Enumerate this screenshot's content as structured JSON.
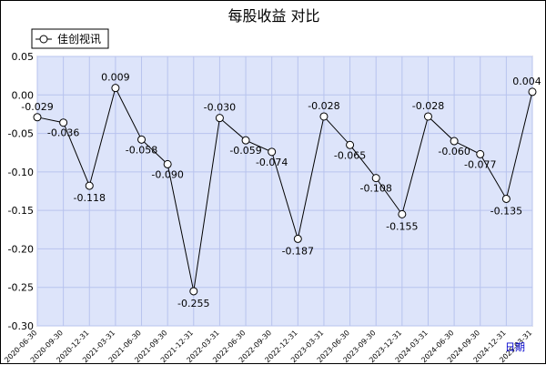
{
  "chart_data": {
    "type": "line",
    "title": "每股收益  对比",
    "x_axis_name": "日期",
    "ylim": [
      -0.3,
      0.05
    ],
    "yticks": [
      0.05,
      0.0,
      -0.05,
      -0.1,
      -0.15,
      -0.2,
      -0.25,
      -0.3
    ],
    "grid": true,
    "legend": "top-left",
    "colors": {
      "plot_bg": "#dde4fa",
      "grid": "#b8c3ee",
      "line": "#000000",
      "marker_fill": "#ffffff"
    },
    "categories": [
      "2020-06-30",
      "2020-09-30",
      "2020-12-31",
      "2021-03-31",
      "2021-06-30",
      "2021-09-30",
      "2021-12-31",
      "2022-03-31",
      "2022-06-30",
      "2022-09-30",
      "2022-12-31",
      "2023-03-31",
      "2023-06-30",
      "2023-09-30",
      "2023-12-31",
      "2024-03-31",
      "2024-06-30",
      "2024-09-30",
      "2024-12-31",
      "2025-03-31"
    ],
    "series": [
      {
        "name": "佳创视讯",
        "values": [
          -0.029,
          -0.036,
          -0.118,
          0.009,
          -0.058,
          -0.09,
          -0.255,
          -0.03,
          -0.059,
          -0.074,
          -0.187,
          -0.028,
          -0.065,
          -0.108,
          -0.155,
          -0.028,
          -0.06,
          -0.077,
          -0.135,
          0.004
        ],
        "labels": [
          "-0.029",
          "-0.036",
          "-0.118",
          "0.009",
          "-0.058",
          "-0.090",
          "-0.255",
          "-0.030",
          "-0.059",
          "-0.074",
          "-0.187",
          "-0.028",
          "-0.065",
          "-0.108",
          "-0.155",
          "-0.028",
          "-0.060",
          "-0.077",
          "-0.135",
          "0.004"
        ]
      }
    ]
  }
}
